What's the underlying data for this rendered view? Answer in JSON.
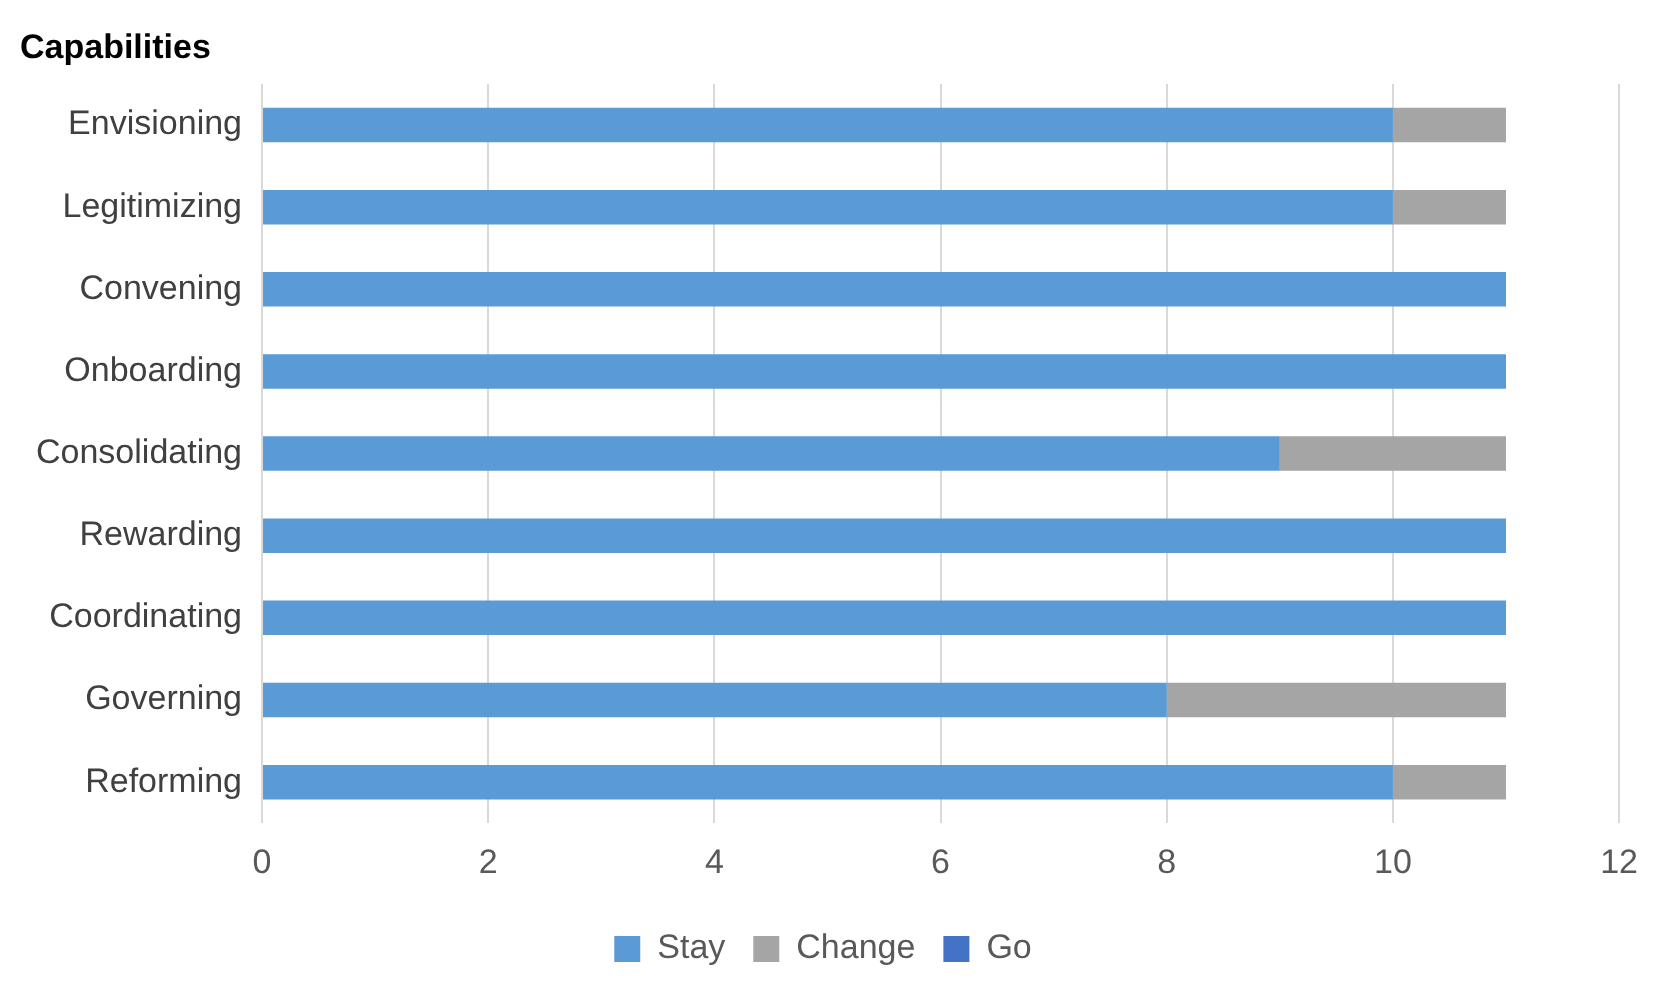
{
  "chart_data": {
    "type": "bar",
    "orientation": "horizontal",
    "stacked": true,
    "ylabel": "Capabilities",
    "categories": [
      "Envisioning",
      "Legitimizing",
      "Convening",
      "Onboarding",
      "Consolidating",
      "Rewarding",
      "Coordinating",
      "Governing",
      "Reforming"
    ],
    "series": [
      {
        "name": "Stay",
        "color": "#5b9bd5",
        "values": [
          10,
          10,
          11,
          11,
          9,
          11,
          11,
          8,
          10
        ]
      },
      {
        "name": "Change",
        "color": "#a5a5a5",
        "values": [
          1,
          1,
          0,
          0,
          2,
          0,
          0,
          3,
          1
        ]
      },
      {
        "name": "Go",
        "color": "#4472c4",
        "values": [
          0,
          0,
          0,
          0,
          0,
          0,
          0,
          0,
          0
        ]
      }
    ],
    "xlim": [
      0,
      12
    ],
    "xticks": [
      0,
      2,
      4,
      6,
      8,
      10,
      12
    ],
    "grid": "x",
    "legend": "bottom"
  }
}
